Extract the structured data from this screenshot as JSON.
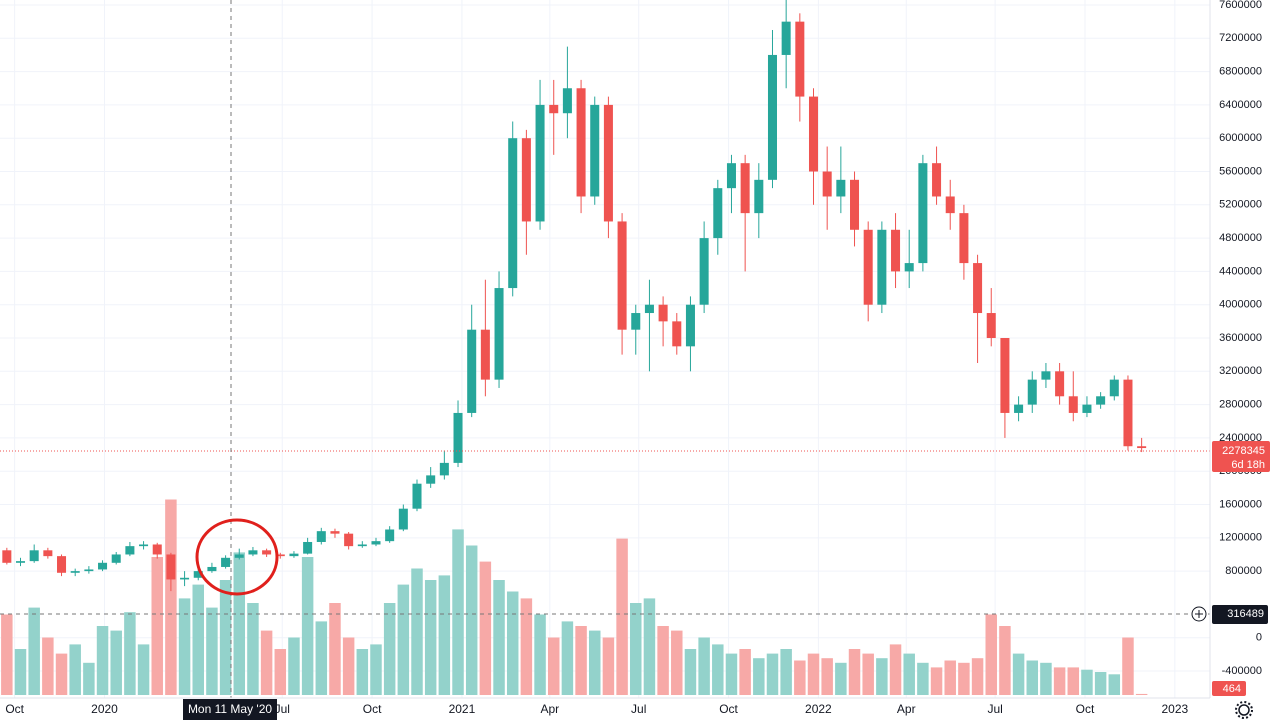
{
  "chart_data": {
    "type": "candlestick",
    "x": [
      "2019-09-16",
      "2019-09-30",
      "2019-10-14",
      "2019-10-28",
      "2019-11-11",
      "2019-11-25",
      "2019-12-09",
      "2019-12-23",
      "2020-01-06",
      "2020-01-20",
      "2020-02-03",
      "2020-02-17",
      "2020-03-02",
      "2020-03-16",
      "2020-03-30",
      "2020-04-13",
      "2020-04-27",
      "2020-05-11",
      "2020-05-25",
      "2020-06-08",
      "2020-06-22",
      "2020-07-06",
      "2020-07-20",
      "2020-08-03",
      "2020-08-17",
      "2020-08-31",
      "2020-09-14",
      "2020-09-28",
      "2020-10-12",
      "2020-10-26",
      "2020-11-09",
      "2020-11-23",
      "2020-12-07",
      "2020-12-21",
      "2021-01-04",
      "2021-01-18",
      "2021-02-01",
      "2021-02-15",
      "2021-03-01",
      "2021-03-15",
      "2021-03-29",
      "2021-04-12",
      "2021-04-26",
      "2021-05-10",
      "2021-05-24",
      "2021-06-07",
      "2021-06-21",
      "2021-07-05",
      "2021-07-19",
      "2021-08-02",
      "2021-08-16",
      "2021-08-30",
      "2021-09-13",
      "2021-09-27",
      "2021-10-11",
      "2021-10-25",
      "2021-11-08",
      "2021-11-22",
      "2021-12-06",
      "2021-12-20",
      "2022-01-03",
      "2022-01-17",
      "2022-01-31",
      "2022-02-14",
      "2022-02-28",
      "2022-03-14",
      "2022-03-28",
      "2022-04-11",
      "2022-04-25",
      "2022-05-09",
      "2022-05-23",
      "2022-06-06",
      "2022-06-20",
      "2022-07-04",
      "2022-07-18",
      "2022-08-01",
      "2022-08-15",
      "2022-08-29",
      "2022-09-12",
      "2022-09-26",
      "2022-10-10",
      "2022-10-24",
      "2022-11-07",
      "2022-11-21"
    ],
    "open": [
      1050000,
      900000,
      920000,
      1050000,
      980000,
      780000,
      800000,
      820000,
      900000,
      1000000,
      1100000,
      1120000,
      1000000,
      700000,
      720000,
      800000,
      850000,
      960000,
      1000000,
      1050000,
      1000000,
      980000,
      1010000,
      1150000,
      1280000,
      1250000,
      1100000,
      1120000,
      1160000,
      1300000,
      1550000,
      1850000,
      1950000,
      2100000,
      2700000,
      3700000,
      3100000,
      4200000,
      6000000,
      5000000,
      6400000,
      6300000,
      6600000,
      5300000,
      6400000,
      5000000,
      3700000,
      3900000,
      4000000,
      3800000,
      3500000,
      4000000,
      4800000,
      5400000,
      5700000,
      5100000,
      5500000,
      7000000,
      7400000,
      6500000,
      5600000,
      5300000,
      5500000,
      4900000,
      4000000,
      4900000,
      4400000,
      4500000,
      5700000,
      5300000,
      5100000,
      4500000,
      3900000,
      3600000,
      2700000,
      2800000,
      3100000,
      3200000,
      2900000,
      2700000,
      2800000,
      2900000,
      3100000,
      2300000
    ],
    "high": [
      1080000,
      960000,
      1120000,
      1080000,
      1000000,
      830000,
      860000,
      930000,
      1030000,
      1150000,
      1160000,
      1140000,
      1020000,
      800000,
      830000,
      900000,
      990000,
      1070000,
      1090000,
      1070000,
      1020000,
      1040000,
      1200000,
      1320000,
      1310000,
      1270000,
      1160000,
      1200000,
      1340000,
      1600000,
      1900000,
      2050000,
      2250000,
      2850000,
      4000000,
      4300000,
      4400000,
      6200000,
      6100000,
      6700000,
      6700000,
      7100000,
      6700000,
      6500000,
      6500000,
      5100000,
      4000000,
      4300000,
      4100000,
      3900000,
      4100000,
      5000000,
      5500000,
      5800000,
      5800000,
      5700000,
      7300000,
      7700000,
      7500000,
      6600000,
      5900000,
      5900000,
      5600000,
      5000000,
      5000000,
      5100000,
      4900000,
      5800000,
      5900000,
      5500000,
      5200000,
      4600000,
      4200000,
      3600000,
      2900000,
      3200000,
      3300000,
      3300000,
      3200000,
      2900000,
      2950000,
      3150000,
      3150000,
      2400000
    ],
    "low": [
      880000,
      860000,
      900000,
      950000,
      740000,
      740000,
      770000,
      800000,
      880000,
      980000,
      1060000,
      950000,
      560000,
      620000,
      690000,
      780000,
      830000,
      940000,
      980000,
      970000,
      950000,
      960000,
      1000000,
      1120000,
      1200000,
      1060000,
      1080000,
      1100000,
      1140000,
      1280000,
      1520000,
      1800000,
      1900000,
      2050000,
      2650000,
      2900000,
      3000000,
      4100000,
      4600000,
      4900000,
      5800000,
      6000000,
      5100000,
      5200000,
      4800000,
      3400000,
      3400000,
      3200000,
      3500000,
      3400000,
      3200000,
      3900000,
      4600000,
      5100000,
      4400000,
      4800000,
      5400000,
      6600000,
      6200000,
      5200000,
      4900000,
      5100000,
      4700000,
      3800000,
      3900000,
      4200000,
      4200000,
      4400000,
      5200000,
      4900000,
      4300000,
      3300000,
      3500000,
      2400000,
      2600000,
      2700000,
      3000000,
      2800000,
      2600000,
      2650000,
      2750000,
      2850000,
      2250000,
      2230000
    ],
    "close": [
      900000,
      920000,
      1050000,
      980000,
      780000,
      800000,
      820000,
      900000,
      1000000,
      1100000,
      1120000,
      1000000,
      700000,
      720000,
      800000,
      850000,
      960000,
      1000000,
      1050000,
      1000000,
      980000,
      1010000,
      1150000,
      1280000,
      1250000,
      1100000,
      1120000,
      1160000,
      1300000,
      1550000,
      1850000,
      1950000,
      2100000,
      2700000,
      3700000,
      3100000,
      4200000,
      6000000,
      5000000,
      6400000,
      6300000,
      6600000,
      5300000,
      6400000,
      5000000,
      3700000,
      3900000,
      4000000,
      3800000,
      3500000,
      4000000,
      4800000,
      5400000,
      5700000,
      5100000,
      5500000,
      7000000,
      7400000,
      6500000,
      5600000,
      5300000,
      5500000,
      4900000,
      4000000,
      4900000,
      4400000,
      4500000,
      5700000,
      5300000,
      5100000,
      4500000,
      3900000,
      3600000,
      2700000,
      2800000,
      3100000,
      3200000,
      2900000,
      2700000,
      2800000,
      2900000,
      3100000,
      2300000,
      2278345
    ],
    "volume": [
      35000,
      20000,
      38000,
      25000,
      18000,
      22000,
      14000,
      30000,
      28000,
      36000,
      22000,
      60000,
      85000,
      42000,
      48000,
      38000,
      50000,
      62000,
      40000,
      28000,
      20000,
      25000,
      60000,
      32000,
      40000,
      25000,
      20000,
      22000,
      40000,
      48000,
      55000,
      50000,
      52000,
      72000,
      65000,
      58000,
      50000,
      45000,
      42000,
      35000,
      25000,
      32000,
      30000,
      28000,
      25000,
      68000,
      40000,
      42000,
      30000,
      28000,
      20000,
      25000,
      22000,
      18000,
      20000,
      16000,
      18000,
      20000,
      15000,
      18000,
      16000,
      14000,
      20000,
      18000,
      16000,
      22000,
      18000,
      14000,
      12000,
      15000,
      14000,
      16000,
      35000,
      30000,
      18000,
      15000,
      14000,
      12000,
      12000,
      11000,
      10000,
      9000,
      25000,
      464
    ],
    "up_color": "#26a69a",
    "down_color": "#ef5350",
    "volume_up_color": "#93d2cb",
    "volume_down_color": "#f7a9a7",
    "xlim": [
      "2019-09-16",
      "2023-02-06"
    ],
    "xticks": [
      {
        "value": "2019-10-01",
        "label": "Oct"
      },
      {
        "value": "2020-01-01",
        "label": "2020"
      },
      {
        "value": "2020-07-01",
        "label": "Jul"
      },
      {
        "value": "2020-10-01",
        "label": "Oct"
      },
      {
        "value": "2021-01-01",
        "label": "2021"
      },
      {
        "value": "2021-04-01",
        "label": "Apr"
      },
      {
        "value": "2021-07-01",
        "label": "Jul"
      },
      {
        "value": "2021-10-01",
        "label": "Oct"
      },
      {
        "value": "2022-01-01",
        "label": "2022"
      },
      {
        "value": "2022-04-01",
        "label": "Apr"
      },
      {
        "value": "2022-07-01",
        "label": "Jul"
      },
      {
        "value": "2022-10-01",
        "label": "Oct"
      },
      {
        "value": "2023-01-01",
        "label": "2023"
      }
    ],
    "ylim": [
      -724000,
      7660000
    ],
    "yticks": [
      7600000,
      7200000,
      6800000,
      6400000,
      6000000,
      5600000,
      5200000,
      4800000,
      4400000,
      4000000,
      3600000,
      3200000,
      2800000,
      2400000,
      2000000,
      1600000,
      1200000,
      800000,
      0,
      -400000
    ],
    "vlim": [
      0,
      100000
    ],
    "grid": true,
    "countdown": "6d 18h",
    "crosshair_time": "Mon 11 May '20",
    "crosshair_value": 316489
  }
}
